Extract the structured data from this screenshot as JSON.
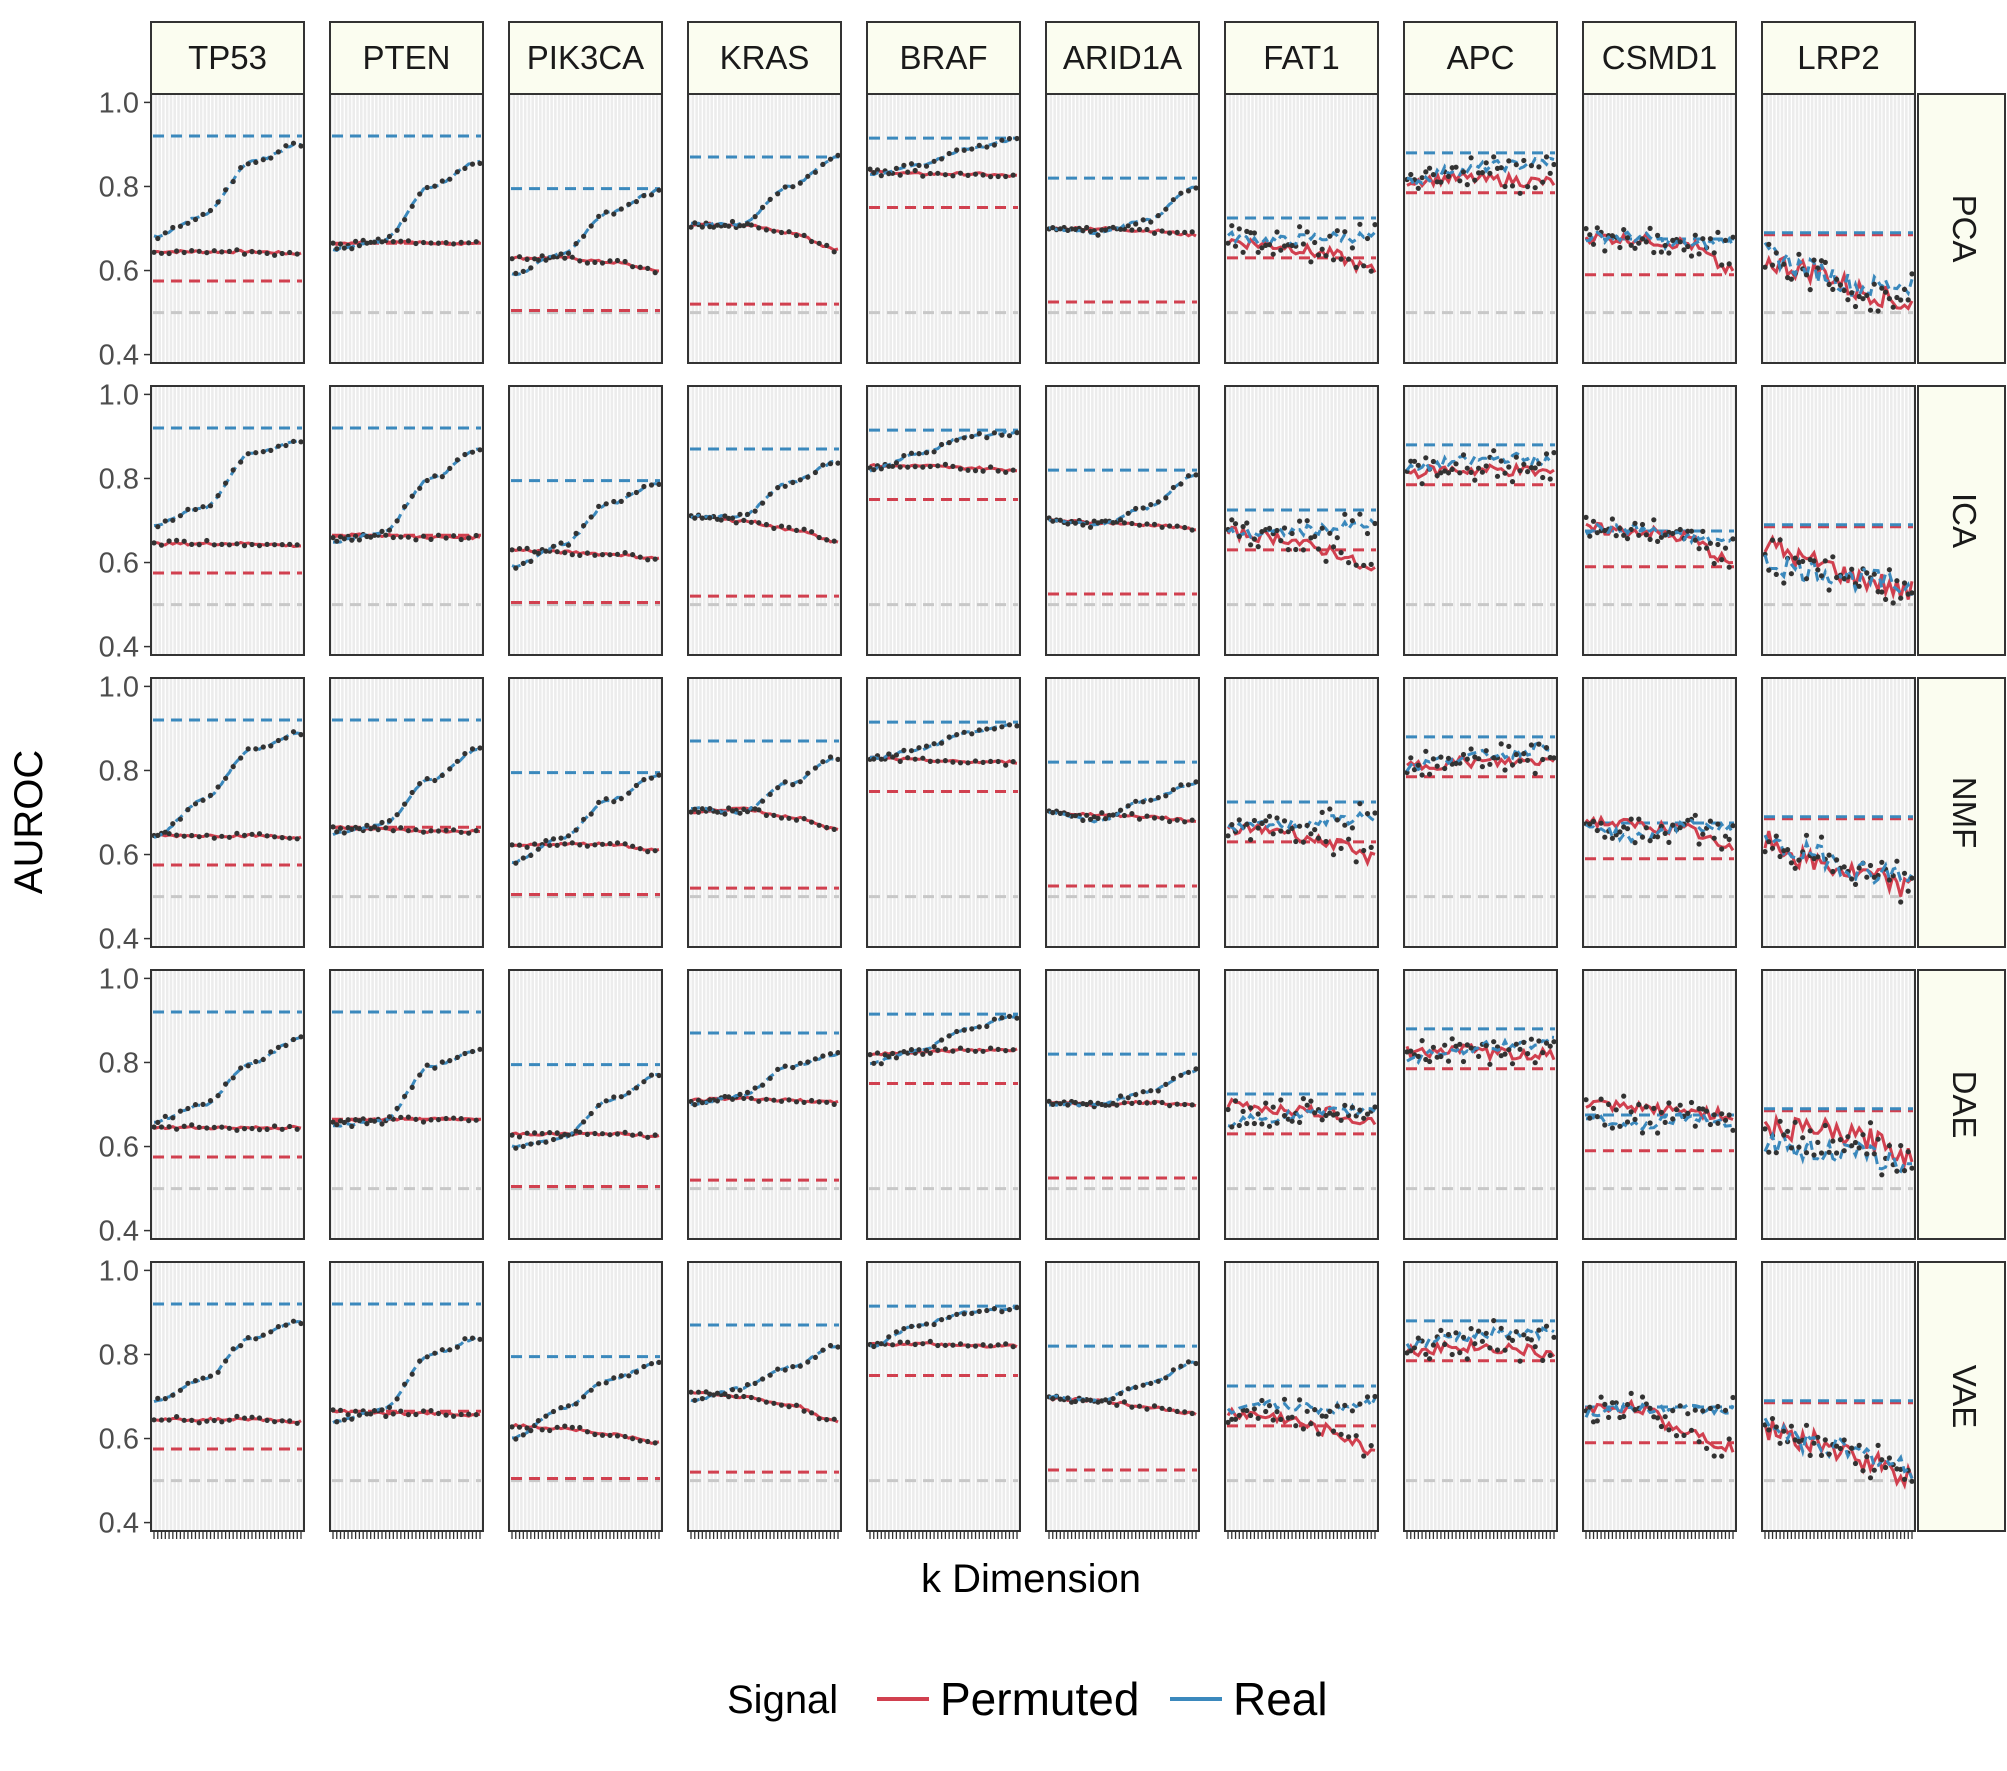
{
  "chart_data": {
    "type": "line",
    "ylabel": "AUROC",
    "xlabel": "k Dimension",
    "ylim": [
      0.38,
      1.02
    ],
    "yticks": [
      "0.4",
      "0.6",
      "0.8",
      "1.0"
    ],
    "x": "k dimensions (tick labels not shown)",
    "grid": true,
    "legend": {
      "title": "Signal",
      "placement": "bottom",
      "entries": [
        {
          "label": "Permuted",
          "color": "#d1404f"
        },
        {
          "label": "Real",
          "color": "#3b89bd"
        }
      ]
    },
    "reference_line_baseline": 0.5,
    "genes": [
      "TP53",
      "PTEN",
      "PIK3CA",
      "KRAS",
      "BRAF",
      "ARID1A",
      "FAT1",
      "APC",
      "CSMD1",
      "LRP2"
    ],
    "methods": [
      "PCA",
      "ICA",
      "NMF",
      "DAE",
      "VAE"
    ],
    "raw_reference": {
      "description": "Dashed lines: blue = raw real AUROC, red = raw permuted AUROC, grey = 0.5",
      "real": [
        0.92,
        0.92,
        0.795,
        0.87,
        0.915,
        0.82,
        0.725,
        0.88,
        0.675,
        0.69
      ],
      "permuted": [
        0.575,
        0.665,
        0.505,
        0.52,
        0.75,
        0.525,
        0.63,
        0.785,
        0.59,
        0.685
      ]
    },
    "curves": {
      "PCA": {
        "real": [
          [
            0.68,
            0.73,
            0.86,
            0.9
          ],
          [
            0.65,
            0.67,
            0.8,
            0.86
          ],
          [
            0.59,
            0.64,
            0.74,
            0.79
          ],
          [
            0.71,
            0.71,
            0.8,
            0.87
          ],
          [
            0.83,
            0.85,
            0.89,
            0.91
          ],
          [
            0.7,
            0.69,
            0.72,
            0.8
          ],
          [
            0.68,
            0.67,
            0.68,
            0.68
          ],
          [
            0.81,
            0.84,
            0.85,
            0.86
          ],
          [
            0.68,
            0.68,
            0.66,
            0.67
          ],
          [
            0.64,
            0.6,
            0.56,
            0.57
          ]
        ],
        "permuted": [
          [
            0.645,
            0.645,
            0.645,
            0.64
          ],
          [
            0.665,
            0.67,
            0.665,
            0.665
          ],
          [
            0.63,
            0.63,
            0.62,
            0.6
          ],
          [
            0.71,
            0.71,
            0.69,
            0.65
          ],
          [
            0.835,
            0.83,
            0.83,
            0.825
          ],
          [
            0.7,
            0.7,
            0.695,
            0.685
          ],
          [
            0.67,
            0.66,
            0.64,
            0.6
          ],
          [
            0.815,
            0.82,
            0.815,
            0.81
          ],
          [
            0.68,
            0.675,
            0.665,
            0.6
          ],
          [
            0.62,
            0.6,
            0.55,
            0.52
          ]
        ]
      },
      "ICA": {
        "real": [
          [
            0.69,
            0.73,
            0.86,
            0.89
          ],
          [
            0.65,
            0.67,
            0.8,
            0.87
          ],
          [
            0.59,
            0.64,
            0.74,
            0.79
          ],
          [
            0.71,
            0.71,
            0.79,
            0.84
          ],
          [
            0.82,
            0.86,
            0.9,
            0.91
          ],
          [
            0.7,
            0.69,
            0.73,
            0.81
          ],
          [
            0.67,
            0.67,
            0.68,
            0.69
          ],
          [
            0.82,
            0.84,
            0.85,
            0.84
          ],
          [
            0.68,
            0.68,
            0.66,
            0.65
          ],
          [
            0.6,
            0.58,
            0.56,
            0.54
          ]
        ],
        "permuted": [
          [
            0.645,
            0.645,
            0.645,
            0.64
          ],
          [
            0.665,
            0.665,
            0.66,
            0.66
          ],
          [
            0.63,
            0.625,
            0.62,
            0.61
          ],
          [
            0.71,
            0.7,
            0.68,
            0.65
          ],
          [
            0.83,
            0.83,
            0.825,
            0.82
          ],
          [
            0.7,
            0.695,
            0.69,
            0.68
          ],
          [
            0.67,
            0.66,
            0.63,
            0.58
          ],
          [
            0.815,
            0.82,
            0.82,
            0.815
          ],
          [
            0.68,
            0.675,
            0.66,
            0.6
          ],
          [
            0.64,
            0.6,
            0.56,
            0.53
          ]
        ]
      },
      "NMF": {
        "real": [
          [
            0.64,
            0.73,
            0.85,
            0.89
          ],
          [
            0.65,
            0.67,
            0.78,
            0.85
          ],
          [
            0.58,
            0.64,
            0.73,
            0.79
          ],
          [
            0.71,
            0.7,
            0.77,
            0.83
          ],
          [
            0.83,
            0.85,
            0.89,
            0.91
          ],
          [
            0.7,
            0.68,
            0.73,
            0.77
          ],
          [
            0.66,
            0.67,
            0.68,
            0.69
          ],
          [
            0.81,
            0.83,
            0.84,
            0.86
          ],
          [
            0.67,
            0.64,
            0.67,
            0.66
          ],
          [
            0.62,
            0.6,
            0.56,
            0.55
          ]
        ],
        "permuted": [
          [
            0.645,
            0.645,
            0.645,
            0.64
          ],
          [
            0.665,
            0.66,
            0.655,
            0.655
          ],
          [
            0.62,
            0.625,
            0.625,
            0.61
          ],
          [
            0.7,
            0.71,
            0.69,
            0.66
          ],
          [
            0.83,
            0.825,
            0.82,
            0.82
          ],
          [
            0.7,
            0.695,
            0.69,
            0.68
          ],
          [
            0.66,
            0.66,
            0.63,
            0.59
          ],
          [
            0.81,
            0.82,
            0.82,
            0.825
          ],
          [
            0.68,
            0.67,
            0.66,
            0.61
          ],
          [
            0.63,
            0.58,
            0.55,
            0.52
          ]
        ]
      },
      "DAE": {
        "real": [
          [
            0.66,
            0.7,
            0.8,
            0.86
          ],
          [
            0.65,
            0.66,
            0.79,
            0.83
          ],
          [
            0.6,
            0.62,
            0.71,
            0.77
          ],
          [
            0.7,
            0.72,
            0.79,
            0.82
          ],
          [
            0.8,
            0.83,
            0.88,
            0.91
          ],
          [
            0.7,
            0.7,
            0.73,
            0.78
          ],
          [
            0.66,
            0.67,
            0.68,
            0.69
          ],
          [
            0.81,
            0.83,
            0.84,
            0.85
          ],
          [
            0.67,
            0.65,
            0.67,
            0.66
          ],
          [
            0.61,
            0.59,
            0.58,
            0.55
          ]
        ],
        "permuted": [
          [
            0.645,
            0.645,
            0.645,
            0.645
          ],
          [
            0.66,
            0.665,
            0.665,
            0.665
          ],
          [
            0.63,
            0.63,
            0.63,
            0.625
          ],
          [
            0.71,
            0.715,
            0.71,
            0.705
          ],
          [
            0.82,
            0.825,
            0.83,
            0.83
          ],
          [
            0.705,
            0.7,
            0.705,
            0.7
          ],
          [
            0.7,
            0.69,
            0.68,
            0.66
          ],
          [
            0.825,
            0.83,
            0.82,
            0.82
          ],
          [
            0.7,
            0.69,
            0.685,
            0.675
          ],
          [
            0.64,
            0.64,
            0.62,
            0.58
          ]
        ]
      },
      "VAE": {
        "real": [
          [
            0.69,
            0.74,
            0.84,
            0.88
          ],
          [
            0.64,
            0.67,
            0.8,
            0.84
          ],
          [
            0.6,
            0.67,
            0.74,
            0.78
          ],
          [
            0.69,
            0.72,
            0.77,
            0.82
          ],
          [
            0.82,
            0.87,
            0.9,
            0.91
          ],
          [
            0.7,
            0.69,
            0.73,
            0.78
          ],
          [
            0.66,
            0.68,
            0.67,
            0.69
          ],
          [
            0.82,
            0.84,
            0.85,
            0.85
          ],
          [
            0.66,
            0.67,
            0.67,
            0.67
          ],
          [
            0.63,
            0.59,
            0.56,
            0.53
          ]
        ],
        "permuted": [
          [
            0.645,
            0.645,
            0.645,
            0.64
          ],
          [
            0.665,
            0.66,
            0.66,
            0.655
          ],
          [
            0.63,
            0.625,
            0.61,
            0.59
          ],
          [
            0.71,
            0.7,
            0.68,
            0.64
          ],
          [
            0.825,
            0.825,
            0.82,
            0.82
          ],
          [
            0.695,
            0.69,
            0.675,
            0.66
          ],
          [
            0.66,
            0.65,
            0.62,
            0.57
          ],
          [
            0.81,
            0.82,
            0.815,
            0.8
          ],
          [
            0.67,
            0.675,
            0.62,
            0.58
          ],
          [
            0.62,
            0.59,
            0.55,
            0.51
          ]
        ]
      }
    }
  }
}
